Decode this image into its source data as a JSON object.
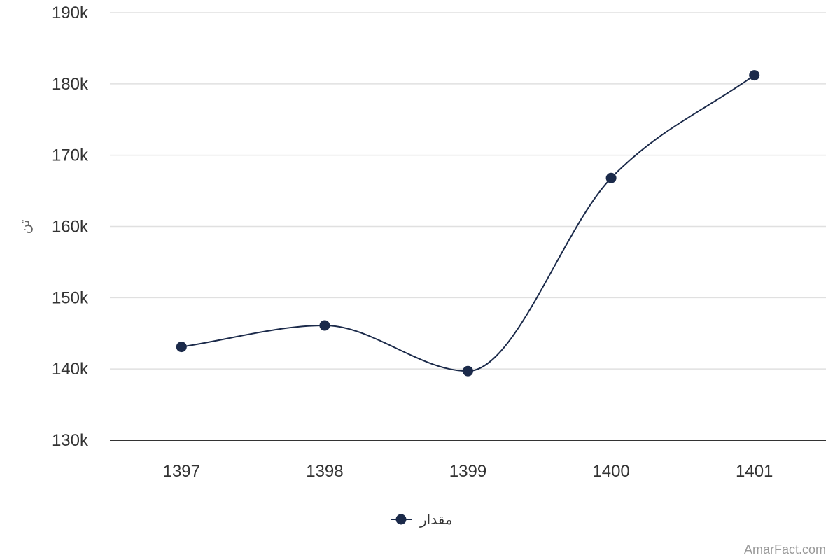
{
  "chart_data": {
    "type": "line",
    "smooth": true,
    "categories": [
      "1397",
      "1398",
      "1399",
      "1400",
      "1401"
    ],
    "series": [
      {
        "name": "مقدار",
        "values": [
          143100,
          146100,
          139700,
          166800,
          181200
        ]
      }
    ],
    "ylabel": "تن",
    "ylim": [
      130000,
      190000
    ],
    "y_ticks": [
      130000,
      140000,
      150000,
      160000,
      170000,
      180000,
      190000
    ],
    "y_tick_labels": [
      "130k",
      "140k",
      "150k",
      "160k",
      "170k",
      "180k",
      "190k"
    ],
    "grid": true,
    "legend": "bottom-center",
    "colors": {
      "series": "#1b2a4a",
      "grid": "#e0e0e0",
      "axis": "#333333"
    }
  },
  "credit": "AmarFact.com"
}
